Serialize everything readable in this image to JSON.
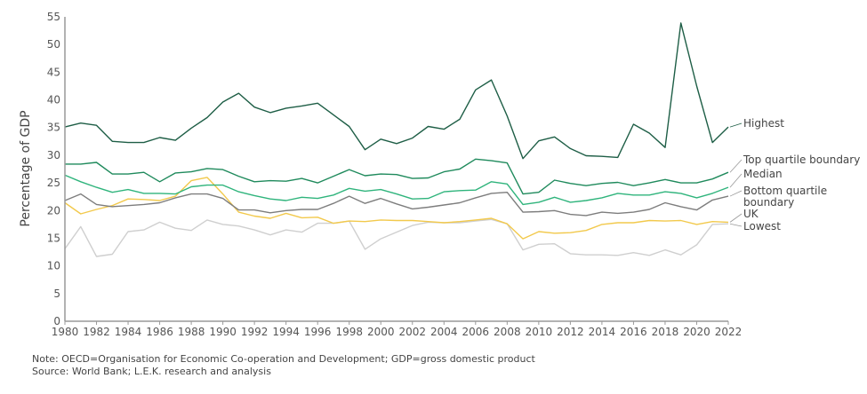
{
  "chart_data": {
    "type": "line",
    "title": "",
    "xlabel": "",
    "ylabel": "Percentage of GDP",
    "xlim": [
      1980,
      2022
    ],
    "ylim": [
      0,
      55
    ],
    "yticks": [
      0,
      5,
      10,
      15,
      20,
      25,
      30,
      35,
      40,
      45,
      50,
      55
    ],
    "xticks": [
      1980,
      1982,
      1984,
      1986,
      1988,
      1990,
      1992,
      1994,
      1996,
      1998,
      2000,
      2002,
      2004,
      2006,
      2008,
      2010,
      2012,
      2014,
      2016,
      2018,
      2020,
      2022
    ],
    "grid": false,
    "legend": "right, inline labels at line ends",
    "x": [
      1980,
      1981,
      1982,
      1983,
      1984,
      1985,
      1986,
      1987,
      1988,
      1989,
      1990,
      1991,
      1992,
      1993,
      1994,
      1995,
      1996,
      1997,
      1998,
      1999,
      2000,
      2001,
      2002,
      2003,
      2004,
      2005,
      2006,
      2007,
      2008,
      2009,
      2010,
      2011,
      2012,
      2013,
      2014,
      2015,
      2016,
      2017,
      2018,
      2019,
      2020,
      2021,
      2022
    ],
    "series": [
      {
        "name": "Highest",
        "color": "#1e5e46",
        "values": [
          35.1,
          35.8,
          35.4,
          32.5,
          32.3,
          32.3,
          33.2,
          32.7,
          34.9,
          36.8,
          39.6,
          41.2,
          38.7,
          37.7,
          38.5,
          38.9,
          39.4,
          37.3,
          35.2,
          31.0,
          32.9,
          32.1,
          33.1,
          35.2,
          34.7,
          36.5,
          41.8,
          43.6,
          37.1,
          29.4,
          32.6,
          33.3,
          31.2,
          29.9,
          29.8,
          29.6,
          35.6,
          34.0,
          31.4,
          53.9,
          42.5,
          32.3,
          35.1
        ]
      },
      {
        "name": "Top quartile boundary",
        "color": "#1f8a5c",
        "values": [
          28.4,
          28.4,
          28.7,
          26.6,
          26.6,
          26.9,
          25.2,
          26.8,
          27.0,
          27.6,
          27.4,
          26.2,
          25.2,
          25.4,
          25.3,
          25.8,
          25.0,
          26.2,
          27.4,
          26.3,
          26.6,
          26.5,
          25.8,
          25.9,
          27.0,
          27.5,
          29.3,
          29.0,
          28.6,
          23.0,
          23.3,
          25.5,
          24.9,
          24.5,
          24.9,
          25.1,
          24.5,
          25.0,
          25.6,
          25.0,
          25.0,
          25.7,
          26.9
        ]
      },
      {
        "name": "Median",
        "color": "#2fb47c",
        "values": [
          26.4,
          25.2,
          24.2,
          23.3,
          23.8,
          23.1,
          23.1,
          23.0,
          24.3,
          24.6,
          24.6,
          23.4,
          22.7,
          22.1,
          21.8,
          22.4,
          22.2,
          22.8,
          24.0,
          23.5,
          23.8,
          23.0,
          22.1,
          22.2,
          23.4,
          23.6,
          23.7,
          25.2,
          24.8,
          21.1,
          21.5,
          22.4,
          21.5,
          21.8,
          22.3,
          23.1,
          22.8,
          22.8,
          23.4,
          23.1,
          22.3,
          23.1,
          24.2
        ]
      },
      {
        "name": "Bottom quartile boundary",
        "color": "#7d7d7d",
        "values": [
          21.8,
          23.0,
          21.1,
          20.7,
          20.9,
          21.1,
          21.4,
          22.3,
          23.0,
          23.0,
          22.2,
          20.1,
          20.1,
          19.6,
          20.0,
          20.2,
          20.2,
          21.3,
          22.6,
          21.3,
          22.2,
          21.2,
          20.3,
          20.6,
          21.0,
          21.4,
          22.3,
          23.1,
          23.3,
          19.7,
          19.8,
          20.0,
          19.3,
          19.1,
          19.7,
          19.5,
          19.7,
          20.2,
          21.4,
          20.7,
          20.1,
          21.9,
          22.6
        ]
      },
      {
        "name": "UK",
        "color": "#f2c94c",
        "values": [
          21.4,
          19.4,
          20.2,
          20.9,
          22.1,
          22.0,
          21.8,
          22.6,
          25.4,
          26.0,
          23.0,
          19.7,
          19.0,
          18.6,
          19.5,
          18.7,
          18.8,
          17.7,
          18.1,
          18.0,
          18.3,
          18.2,
          18.2,
          18.0,
          17.8,
          18.0,
          18.3,
          18.6,
          17.6,
          14.9,
          16.2,
          15.9,
          16.0,
          16.4,
          17.5,
          17.8,
          17.8,
          18.2,
          18.1,
          18.2,
          17.5,
          18.0,
          17.9
        ]
      },
      {
        "name": "Lowest",
        "color": "#cfcfcf",
        "values": [
          13.1,
          17.1,
          11.7,
          12.1,
          16.2,
          16.5,
          17.9,
          16.8,
          16.4,
          18.3,
          17.5,
          17.2,
          16.5,
          15.6,
          16.5,
          16.1,
          17.7,
          17.7,
          18.1,
          13.0,
          14.9,
          16.1,
          17.3,
          17.9,
          17.8,
          17.8,
          18.1,
          18.4,
          17.6,
          12.9,
          13.9,
          14.0,
          12.2,
          12.0,
          12.0,
          11.9,
          12.4,
          11.9,
          12.9,
          12.0,
          13.8,
          17.5,
          17.6
        ]
      }
    ]
  },
  "notes": {
    "note": "Note: OECD=Organisation for Economic Co-operation and Development; GDP=gross domestic product",
    "source": "Source: World Bank; L.E.K. research and analysis"
  }
}
